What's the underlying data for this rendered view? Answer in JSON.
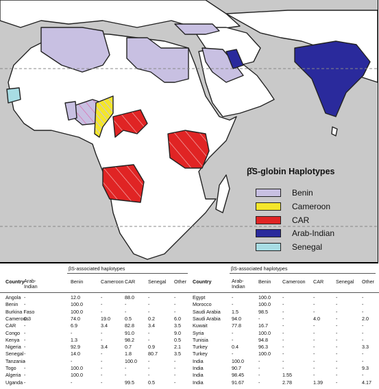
{
  "colors": {
    "ocean": "#c9c9c9",
    "land": "#ffffff",
    "benin": "#c8c0e2",
    "cameroon": "#f4e62a",
    "car": "#e02424",
    "arab_indian": "#2a2a9c",
    "senegal": "#a8dde4"
  },
  "legend": {
    "title": "β̂S-globin Haplotypes",
    "items": [
      {
        "label": "Benin",
        "color": "#c8c0e2"
      },
      {
        "label": "Cameroon",
        "color": "#f4e62a"
      },
      {
        "label": "CAR",
        "color": "#e02424"
      },
      {
        "label": "Arab-Indian",
        "color": "#2a2a9c"
      },
      {
        "label": "Senegal",
        "color": "#a8dde4"
      }
    ]
  },
  "table": {
    "group_title": "βS-associated haplotypes",
    "columns": [
      "Country",
      "Arab-Indian",
      "Benin",
      "Cameroon",
      "CAR",
      "Senegal",
      "Other"
    ],
    "left_rows": [
      [
        "Angola",
        "-",
        "12.0",
        "-",
        "88.0",
        "-",
        "-"
      ],
      [
        "Benin",
        "-",
        "100.0",
        "-",
        "-",
        "-",
        "-"
      ],
      [
        "Burkina Faso",
        "-",
        "100.0",
        "-",
        "-",
        "-",
        "-"
      ],
      [
        "Cameroon",
        "0.3",
        "74.0",
        "19.0",
        "0.5",
        "0.2",
        "6.0"
      ],
      [
        "CAR",
        "-",
        "6.9",
        "3.4",
        "82.8",
        "3.4",
        "3.5"
      ],
      [
        "Congo",
        "-",
        "-",
        "-",
        "91.0",
        "-",
        "9.0"
      ],
      [
        "Kenya",
        "-",
        "1.3",
        "-",
        "98.2",
        "-",
        "0.5"
      ],
      [
        "Nigeria",
        "-",
        "92.9",
        "3.4",
        "0.7",
        "0.9",
        "2.1"
      ],
      [
        "Senegal",
        "-",
        "14.0",
        "-",
        "1.8",
        "80.7",
        "3.5"
      ],
      [
        "Tanzania",
        "-",
        "-",
        "-",
        "100.0",
        "-",
        "-"
      ],
      [
        "Togo",
        "-",
        "100.0",
        "-",
        "-",
        "-",
        "-"
      ],
      [
        "Algeria",
        "-",
        "100.0",
        "-",
        "-",
        "-",
        "-"
      ],
      [
        "Uganda",
        "-",
        "-",
        "-",
        "99.5",
        "0.5",
        "-"
      ]
    ],
    "right_rows": [
      [
        "Egypt",
        "-",
        "100.0",
        "-",
        "-",
        "-",
        "-"
      ],
      [
        "Morocco",
        "-",
        "100.0",
        "-",
        "-",
        "-",
        "-"
      ],
      [
        "Saudi Arabia",
        "1.5",
        "98.5",
        "-",
        "-",
        "-",
        "-"
      ],
      [
        "Saudi Arabia",
        "94.0",
        "-",
        "-",
        "4.0",
        "-",
        "2.0"
      ],
      [
        "Kuwait",
        "77.8",
        "16.7",
        "-",
        "-",
        "-",
        "-"
      ],
      [
        "Syria",
        "-",
        "100.0",
        "-",
        "-",
        "-",
        "-"
      ],
      [
        "Tunisia",
        "-",
        "94.8",
        "-",
        "-",
        "-",
        "-"
      ],
      [
        "Turkey",
        "0.4",
        "96.3",
        "-",
        "-",
        "-",
        "3.3"
      ],
      [
        "Turkey",
        "-",
        "100.0",
        "-",
        "-",
        "-",
        "-"
      ],
      [
        "India",
        "100.0",
        "-",
        "-",
        "-",
        "-",
        "-"
      ],
      [
        "India",
        "90.7",
        "-",
        "-",
        "-",
        "-",
        "9.3"
      ],
      [
        "India",
        "98.45",
        "-",
        "1.55",
        "-",
        "-",
        "-"
      ],
      [
        "India",
        "91.67",
        "-",
        "2.78",
        "1.39",
        "-",
        "4.17"
      ]
    ]
  }
}
